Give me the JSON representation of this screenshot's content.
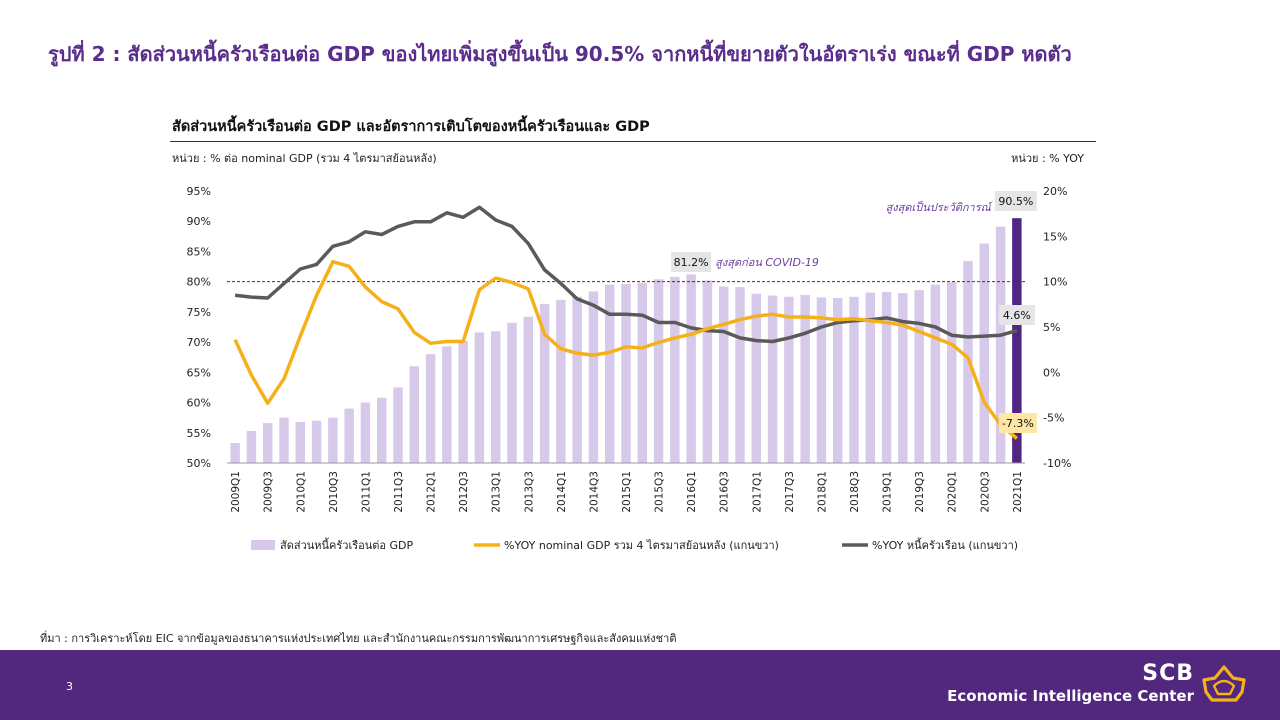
{
  "header": {
    "title": "รูปที่ 2 : สัดส่วนหนี้ครัวเรือนต่อ GDP ของไทยเพิ่มสูงขึ้นเป็น 90.5% จากหนี้ที่ขยายตัวในอัตราเร่ง ขณะที่ GDP หดตัว"
  },
  "chart_header": {
    "title": "สัดส่วนหนี้ครัวเรือนต่อ GDP และอัตราการเติบโตของหนี้ครัวเรือนและ GDP",
    "unit_left": "หน่วย : % ต่อ nominal GDP (รวม 4 ไตรมาสย้อนหลัง)",
    "unit_right": "หน่วย : % YOY"
  },
  "chart_data": {
    "type": "bar",
    "categories": [
      "2009Q1",
      "2009Q2",
      "2009Q3",
      "2009Q4",
      "2010Q1",
      "2010Q2",
      "2010Q3",
      "2010Q4",
      "2011Q1",
      "2011Q2",
      "2011Q3",
      "2011Q4",
      "2012Q1",
      "2012Q2",
      "2012Q3",
      "2012Q4",
      "2013Q1",
      "2013Q2",
      "2013Q3",
      "2013Q4",
      "2014Q1",
      "2014Q2",
      "2014Q3",
      "2014Q4",
      "2015Q1",
      "2015Q2",
      "2015Q3",
      "2015Q4",
      "2016Q1",
      "2016Q2",
      "2016Q3",
      "2016Q4",
      "2017Q1",
      "2017Q2",
      "2017Q3",
      "2017Q4",
      "2018Q1",
      "2018Q2",
      "2018Q3",
      "2018Q4",
      "2019Q1",
      "2019Q2",
      "2019Q3",
      "2019Q4",
      "2020Q1",
      "2020Q2",
      "2020Q3",
      "2020Q4",
      "2021Q1"
    ],
    "x_tick_labels": [
      "2009Q1",
      "2009Q3",
      "2010Q1",
      "2010Q3",
      "2011Q1",
      "2011Q3",
      "2012Q1",
      "2012Q3",
      "2013Q1",
      "2013Q3",
      "2014Q1",
      "2014Q3",
      "2015Q1",
      "2015Q3",
      "2016Q1",
      "2016Q3",
      "2017Q1",
      "2017Q3",
      "2018Q1",
      "2018Q3",
      "2019Q1",
      "2019Q3",
      "2020Q1",
      "2020Q3",
      "2021Q1"
    ],
    "series": [
      {
        "name": "สัดส่วนหนี้ครัวเรือนต่อ GDP",
        "type": "bar",
        "axis": "left",
        "color": "#d6c9ea",
        "highlight_color": "#4f2683",
        "values": [
          53.3,
          55.3,
          56.6,
          57.5,
          56.8,
          57.0,
          57.5,
          59.0,
          60.0,
          60.8,
          62.5,
          66.0,
          68.0,
          69.3,
          70.2,
          71.6,
          71.8,
          73.2,
          74.2,
          76.3,
          77.0,
          77.5,
          78.4,
          79.5,
          79.6,
          79.8,
          80.4,
          80.8,
          81.2,
          80.2,
          79.2,
          79.1,
          78.0,
          77.7,
          77.5,
          77.8,
          77.4,
          77.3,
          77.5,
          78.2,
          78.3,
          78.1,
          78.6,
          79.5,
          79.9,
          83.4,
          86.3,
          89.1,
          90.5
        ]
      },
      {
        "name": "%YOY nominal GDP รวม 4 ไตรมาสย้อนหลัง (แกนขวา)",
        "type": "line",
        "axis": "right",
        "color": "#f5b11b",
        "values": [
          3.6,
          -0.3,
          -3.4,
          -0.7,
          4.0,
          8.5,
          12.2,
          11.7,
          9.4,
          7.8,
          7.0,
          4.4,
          3.2,
          3.4,
          3.4,
          9.1,
          10.4,
          9.9,
          9.2,
          4.2,
          2.6,
          2.1,
          1.9,
          2.2,
          2.8,
          2.7,
          3.3,
          3.8,
          4.2,
          4.8,
          5.3,
          5.8,
          6.2,
          6.4,
          6.1,
          6.1,
          6.0,
          5.8,
          5.9,
          5.7,
          5.5,
          5.2,
          4.5,
          3.8,
          3.1,
          1.6,
          -3.3,
          -5.8,
          -7.3
        ]
      },
      {
        "name": "%YOY หนี้ครัวเรือน (แกนขวา)",
        "type": "line",
        "axis": "right",
        "color": "#5a5a5a",
        "values": [
          8.5,
          8.3,
          8.2,
          9.8,
          11.4,
          11.9,
          13.9,
          14.4,
          15.5,
          15.2,
          16.1,
          16.6,
          16.6,
          17.6,
          17.1,
          18.2,
          16.8,
          16.1,
          14.2,
          11.3,
          9.8,
          8.1,
          7.4,
          6.4,
          6.4,
          6.3,
          5.5,
          5.5,
          4.9,
          4.6,
          4.5,
          3.8,
          3.5,
          3.4,
          3.8,
          4.3,
          5.0,
          5.5,
          5.7,
          5.8,
          6.0,
          5.6,
          5.4,
          5.0,
          4.1,
          3.9,
          4.0,
          4.1,
          4.6
        ]
      }
    ],
    "y_left": {
      "range": [
        50,
        95
      ],
      "ticks": [
        "95%",
        "90%",
        "85%",
        "80%",
        "75%",
        "70%",
        "65%",
        "60%",
        "55%",
        "50%"
      ]
    },
    "y_right": {
      "range": [
        -10,
        20
      ],
      "ticks": [
        "20%",
        "15%",
        "10%",
        "5%",
        "0%",
        "-5%",
        "-10%"
      ]
    },
    "reference_line": {
      "axis": "left",
      "value": 80,
      "color": "#8b1a1a",
      "style": "dashed"
    },
    "annotations": {
      "peak_pre_covid": {
        "index": 28,
        "value_label": "81.2%",
        "text": "สูงสุดก่อน COVID-19"
      },
      "record_high": {
        "index": 48,
        "value_label": "90.5%",
        "text": "สูงสุดเป็นประวัติการณ์"
      },
      "debt_growth_last": {
        "index": 48,
        "value_label": "4.6%"
      },
      "gdp_growth_last": {
        "index": 48,
        "value_label": "-7.3%"
      }
    },
    "legend_position": "bottom",
    "grid": false
  },
  "footer": {
    "source": "ที่มา : การวิเคราะห์โดย EIC จากข้อมูลของธนาคารแห่งประเทศไทย และสำนักงานคณะกรรมการพัฒนาการเศรษฐกิจและสังคมแห่งชาติ",
    "page_number": "3",
    "brand_name": "SCB",
    "brand_subtitle": "Economic Intelligence Center",
    "logo_icon": "scb-lotus-logo-icon",
    "color_background": "#51287e"
  }
}
